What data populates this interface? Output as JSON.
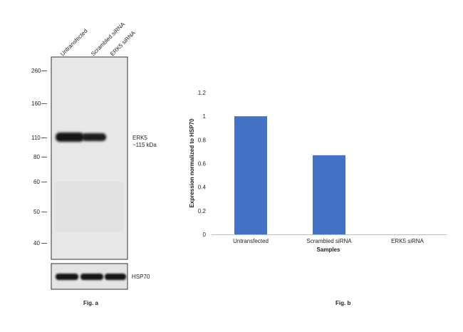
{
  "figure_a": {
    "lane_labels": [
      "Untransfected",
      "Scrambled siRNA",
      "ERK5 siRNA"
    ],
    "mw_markers": [
      "260",
      "160",
      "110",
      "80",
      "60",
      "50",
      "40"
    ],
    "target_label": "ERK5",
    "target_size": "~115 kDa",
    "control_label": "HSP70",
    "caption": "Fig. a"
  },
  "figure_b": {
    "caption": "Fig. b",
    "bar_color": "#4472C4"
  },
  "chart_data": {
    "type": "bar",
    "title": "",
    "categories": [
      "Untransfected",
      "Scrambled siRNA",
      "ERK5 siRNA"
    ],
    "values": [
      1.0,
      0.67,
      0.0
    ],
    "xlabel": "Samples",
    "ylabel": "Expression normalized to HSP70",
    "ylim": [
      0,
      1.2
    ],
    "yticks": [
      "0",
      "0.2",
      "0.4",
      "0.6",
      "0.8",
      "1",
      "1.2"
    ],
    "grid": false,
    "legend": "none"
  }
}
